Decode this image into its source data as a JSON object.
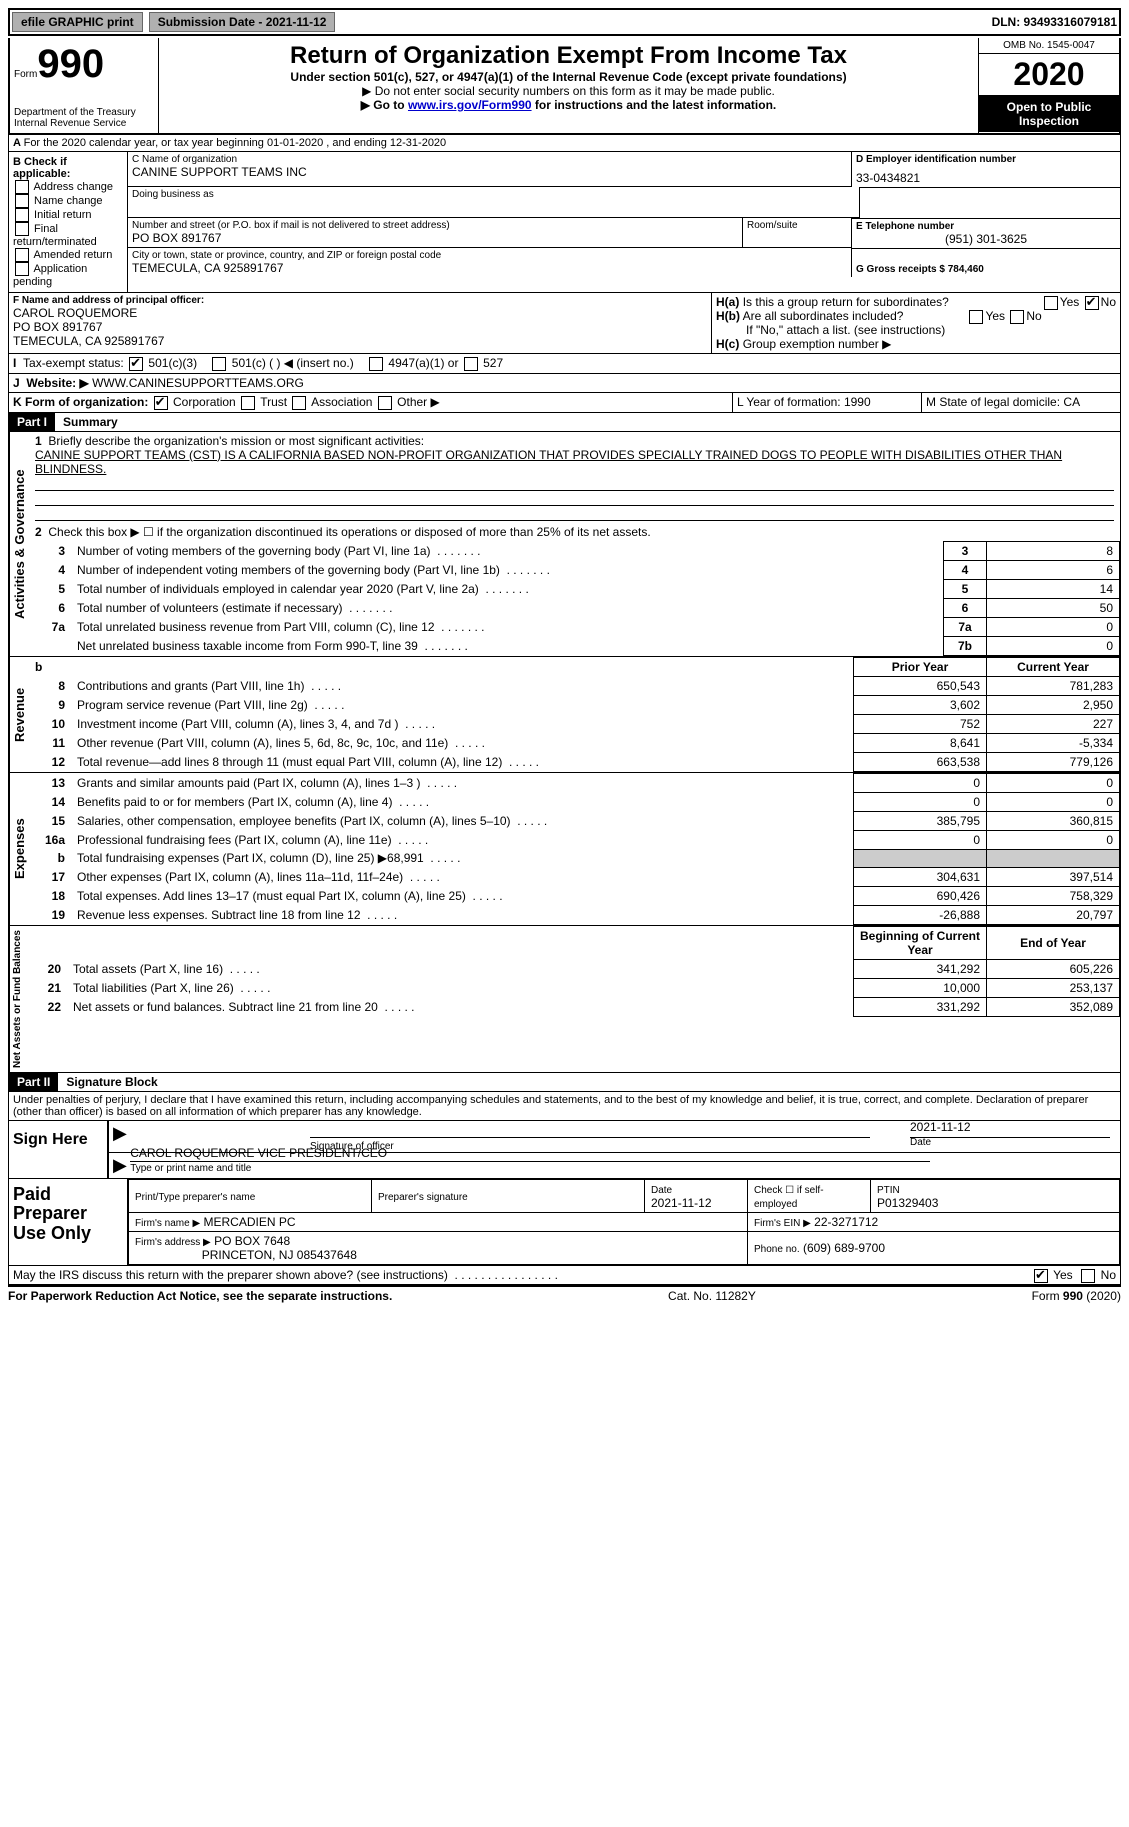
{
  "top": {
    "efile_btn": "efile GRAPHIC print",
    "submission_label": "Submission Date - 2021-11-12",
    "dln_label": "DLN: 93493316079181"
  },
  "header": {
    "form_label": "Form",
    "form_num": "990",
    "title": "Return of Organization Exempt From Income Tax",
    "subtitle": "Under section 501(c), 527, or 4947(a)(1) of the Internal Revenue Code (except private foundations)",
    "note1": "▶ Do not enter social security numbers on this form as it may be made public.",
    "note2_pre": "▶ Go to ",
    "note2_link": "www.irs.gov/Form990",
    "note2_post": " for instructions and the latest information.",
    "dept": "Department of the Treasury\nInternal Revenue Service",
    "omb": "OMB No. 1545-0047",
    "year": "2020",
    "open": "Open to Public Inspection"
  },
  "sectionA": {
    "line": "For the 2020 calendar year, or tax year beginning 01-01-2020    , and ending 12-31-2020"
  },
  "sectionB": {
    "title": "B Check if applicable:",
    "opts": [
      "Address change",
      "Name change",
      "Initial return",
      "Final return/terminated",
      "Amended return",
      "Application pending"
    ]
  },
  "sectionC": {
    "name_label": "C Name of organization",
    "name": "CANINE SUPPORT TEAMS INC",
    "dba_label": "Doing business as",
    "addr_label": "Number and street (or P.O. box if mail is not delivered to street address)",
    "room_label": "Room/suite",
    "addr": "PO BOX 891767",
    "city_label": "City or town, state or province, country, and ZIP or foreign postal code",
    "city": "TEMECULA, CA  925891767"
  },
  "sectionD": {
    "label": "D Employer identification number",
    "ein": "33-0434821"
  },
  "sectionE": {
    "label": "E Telephone number",
    "phone": "(951) 301-3625"
  },
  "sectionG": {
    "label": "G Gross receipts $ 784,460"
  },
  "sectionF": {
    "label": "F Name and address of principal officer:",
    "name": "CAROL ROQUEMORE",
    "addr1": "PO BOX 891767",
    "addr2": "TEMECULA, CA  925891767"
  },
  "sectionH": {
    "ha": "Is this a group return for subordinates?",
    "ha_yes": "Yes",
    "ha_no": "No",
    "hb": "Are all subordinates included?",
    "hb_note": "If \"No,\" attach a list. (see instructions)",
    "hc": "Group exemption number ▶"
  },
  "sectionI": {
    "label": "Tax-exempt status:",
    "opt1": "501(c)(3)",
    "opt2": "501(c) (   ) ◀ (insert no.)",
    "opt3": "4947(a)(1) or",
    "opt4": "527"
  },
  "sectionJ": {
    "label": "Website: ▶",
    "value": "WWW.CANINESUPPORTTEAMS.ORG"
  },
  "sectionK": {
    "label": "K Form of organization:",
    "opts": [
      "Corporation",
      "Trust",
      "Association",
      "Other ▶"
    ]
  },
  "sectionL": {
    "label": "L Year of formation: 1990"
  },
  "sectionM": {
    "label": "M State of legal domicile: CA"
  },
  "part1": {
    "tag": "Part I",
    "title": "Summary",
    "q1": "Briefly describe the organization's mission or most significant activities:",
    "mission": "CANINE SUPPORT TEAMS (CST) IS A CALIFORNIA BASED NON-PROFIT ORGANIZATION THAT PROVIDES SPECIALLY TRAINED DOGS TO PEOPLE WITH DISABILITIES OTHER THAN BLINDNESS.",
    "q2": "Check this box ▶ ☐ if the organization discontinued its operations or disposed of more than 25% of its net assets.",
    "rows_gov": [
      {
        "n": "3",
        "txt": "Number of voting members of the governing body (Part VI, line 1a)",
        "idx": "3",
        "val": "8"
      },
      {
        "n": "4",
        "txt": "Number of independent voting members of the governing body (Part VI, line 1b)",
        "idx": "4",
        "val": "6"
      },
      {
        "n": "5",
        "txt": "Total number of individuals employed in calendar year 2020 (Part V, line 2a)",
        "idx": "5",
        "val": "14"
      },
      {
        "n": "6",
        "txt": "Total number of volunteers (estimate if necessary)",
        "idx": "6",
        "val": "50"
      },
      {
        "n": "7a",
        "txt": "Total unrelated business revenue from Part VIII, column (C), line 12",
        "idx": "7a",
        "val": "0"
      },
      {
        "n": "",
        "txt": "Net unrelated business taxable income from Form 990-T, line 39",
        "idx": "7b",
        "val": "0"
      }
    ],
    "col_prior": "Prior Year",
    "col_current": "Current Year",
    "vert_gov": "Activities & Governance",
    "vert_rev": "Revenue",
    "vert_exp": "Expenses",
    "vert_net": "Net Assets or Fund Balances",
    "rows_rev": [
      {
        "n": "8",
        "txt": "Contributions and grants (Part VIII, line 1h)",
        "p": "650,543",
        "c": "781,283"
      },
      {
        "n": "9",
        "txt": "Program service revenue (Part VIII, line 2g)",
        "p": "3,602",
        "c": "2,950"
      },
      {
        "n": "10",
        "txt": "Investment income (Part VIII, column (A), lines 3, 4, and 7d )",
        "p": "752",
        "c": "227"
      },
      {
        "n": "11",
        "txt": "Other revenue (Part VIII, column (A), lines 5, 6d, 8c, 9c, 10c, and 11e)",
        "p": "8,641",
        "c": "-5,334"
      },
      {
        "n": "12",
        "txt": "Total revenue—add lines 8 through 11 (must equal Part VIII, column (A), line 12)",
        "p": "663,538",
        "c": "779,126"
      }
    ],
    "rows_exp": [
      {
        "n": "13",
        "txt": "Grants and similar amounts paid (Part IX, column (A), lines 1–3 )",
        "p": "0",
        "c": "0"
      },
      {
        "n": "14",
        "txt": "Benefits paid to or for members (Part IX, column (A), line 4)",
        "p": "0",
        "c": "0"
      },
      {
        "n": "15",
        "txt": "Salaries, other compensation, employee benefits (Part IX, column (A), lines 5–10)",
        "p": "385,795",
        "c": "360,815"
      },
      {
        "n": "16a",
        "txt": "Professional fundraising fees (Part IX, column (A), line 11e)",
        "p": "0",
        "c": "0"
      },
      {
        "n": "b",
        "txt": "Total fundraising expenses (Part IX, column (D), line 25) ▶68,991",
        "p": "GRAY",
        "c": "GRAY"
      },
      {
        "n": "17",
        "txt": "Other expenses (Part IX, column (A), lines 11a–11d, 11f–24e)",
        "p": "304,631",
        "c": "397,514"
      },
      {
        "n": "18",
        "txt": "Total expenses. Add lines 13–17 (must equal Part IX, column (A), line 25)",
        "p": "690,426",
        "c": "758,329"
      },
      {
        "n": "19",
        "txt": "Revenue less expenses. Subtract line 18 from line 12",
        "p": "-26,888",
        "c": "20,797"
      }
    ],
    "col_begin": "Beginning of Current Year",
    "col_end": "End of Year",
    "rows_net": [
      {
        "n": "20",
        "txt": "Total assets (Part X, line 16)",
        "p": "341,292",
        "c": "605,226"
      },
      {
        "n": "21",
        "txt": "Total liabilities (Part X, line 26)",
        "p": "10,000",
        "c": "253,137"
      },
      {
        "n": "22",
        "txt": "Net assets or fund balances. Subtract line 21 from line 20",
        "p": "331,292",
        "c": "352,089"
      }
    ]
  },
  "part2": {
    "tag": "Part II",
    "title": "Signature Block",
    "decl": "Under penalties of perjury, I declare that I have examined this return, including accompanying schedules and statements, and to the best of my knowledge and belief, it is true, correct, and complete. Declaration of preparer (other than officer) is based on all information of which preparer has any knowledge.",
    "sign_here": "Sign Here",
    "sig_officer": "Signature of officer",
    "sig_date": "2021-11-12",
    "date_lbl": "Date",
    "officer_name": "CAROL ROQUEMORE VICE PRESIDENT/CEO",
    "type_name": "Type or print name and title",
    "paid": "Paid Preparer Use Only",
    "prep_name_lbl": "Print/Type preparer's name",
    "prep_sig_lbl": "Preparer's signature",
    "prep_date_lbl": "Date",
    "prep_date": "2021-11-12",
    "check_self": "Check ☐ if self-employed",
    "ptin_lbl": "PTIN",
    "ptin": "P01329403",
    "firm_name_lbl": "Firm's name    ▶",
    "firm_name": "MERCADIEN PC",
    "firm_ein_lbl": "Firm's EIN ▶",
    "firm_ein": "22-3271712",
    "firm_addr_lbl": "Firm's address ▶",
    "firm_addr": "PO BOX 7648",
    "firm_city": "PRINCETON, NJ  085437648",
    "firm_phone_lbl": "Phone no.",
    "firm_phone": "(609) 689-9700",
    "discuss": "May the IRS discuss this return with the preparer shown above? (see instructions)",
    "yes": "Yes",
    "no": "No"
  },
  "footer": {
    "pra": "For Paperwork Reduction Act Notice, see the separate instructions.",
    "cat": "Cat. No. 11282Y",
    "form": "Form 990 (2020)"
  }
}
